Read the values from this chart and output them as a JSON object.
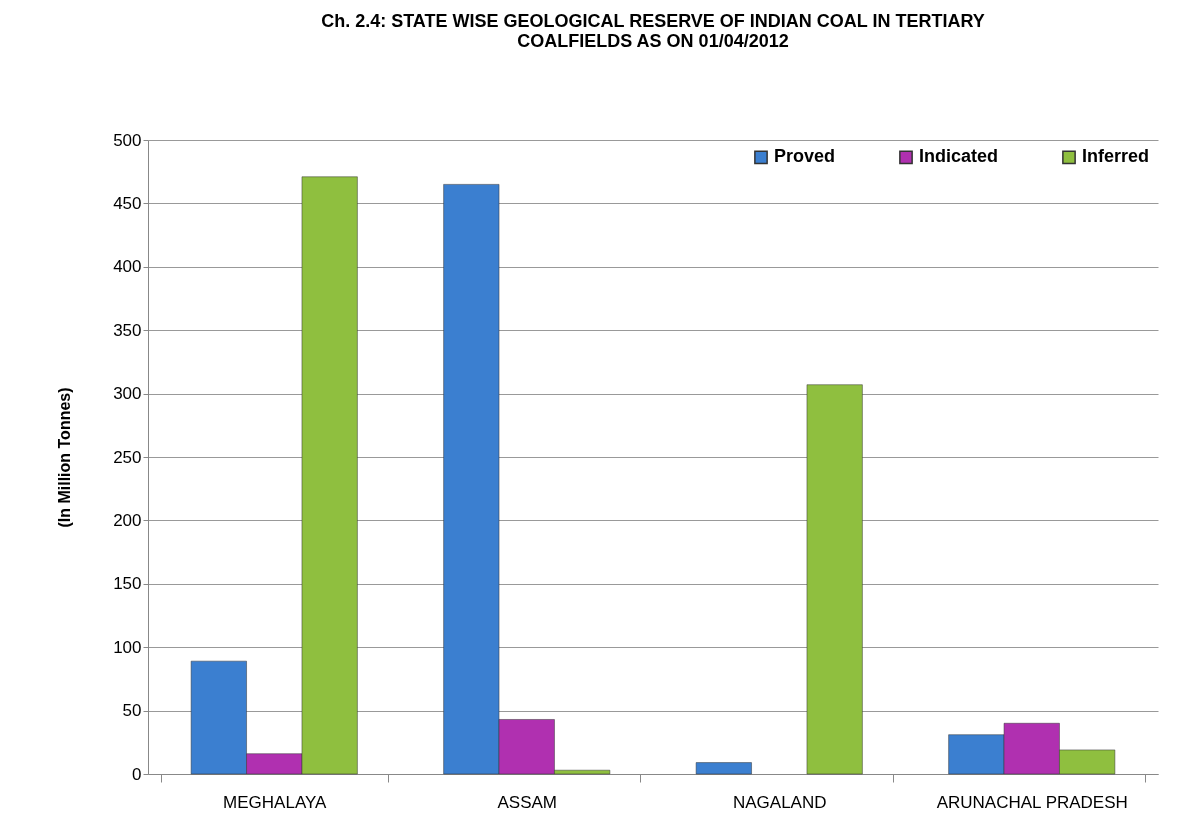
{
  "chart_data": {
    "type": "bar",
    "title": "Ch. 2.4: STATE WISE GEOLOGICAL RESERVE OF INDIAN COAL IN TERTIARY COALFIELDS AS ON 01/04/2012",
    "ylabel": "(In Million Tonnes)",
    "categories": [
      "MEGHALAYA",
      "ASSAM",
      "NAGALAND",
      "ARUNACHAL PRADESH"
    ],
    "series": [
      {
        "name": "Proved",
        "color": "#3b7fd0",
        "values": [
          89,
          465,
          9,
          31
        ]
      },
      {
        "name": "Indicated",
        "color": "#b030b0",
        "values": [
          16,
          43,
          null,
          40
        ]
      },
      {
        "name": "Inferred",
        "color": "#8fbf3f",
        "values": [
          471,
          3,
          307,
          19
        ]
      }
    ],
    "ylim": [
      0,
      500
    ],
    "yticks": [
      0,
      50,
      100,
      150,
      200,
      250,
      300,
      350,
      400,
      450,
      500
    ],
    "grid": "y",
    "legend": "top right"
  }
}
